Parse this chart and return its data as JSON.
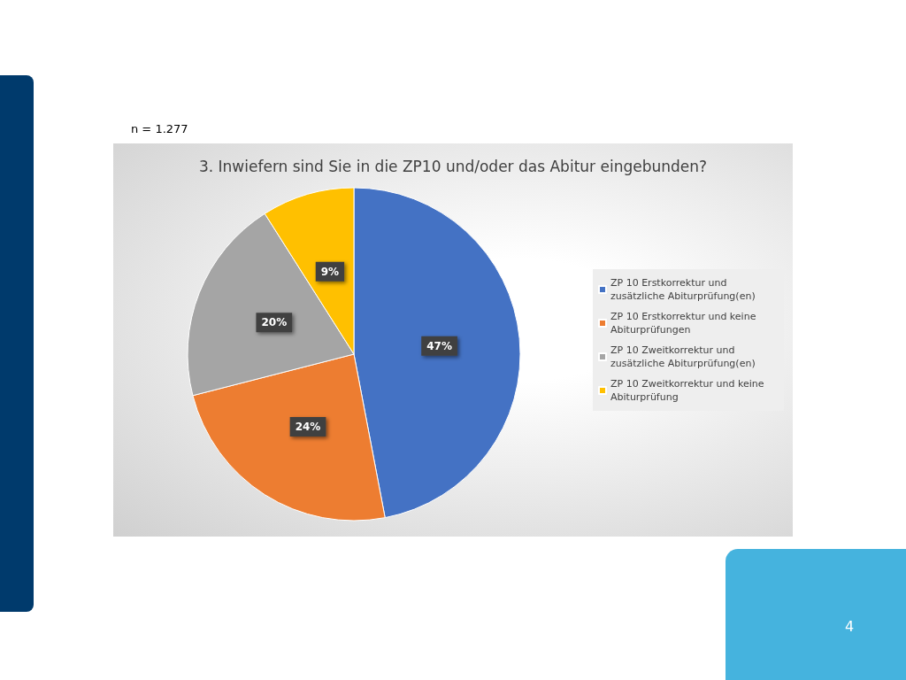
{
  "chart_data": {
    "type": "pie",
    "title": "3. Inwiefern sind Sie in die ZP10 und/oder das Abitur eingebunden?",
    "categories": [
      "ZP 10 Erstkorrektur und zusätzliche Abiturprüfung(en)",
      "ZP 10 Erstkorrektur und keine Abiturprüfungen",
      "ZP 10 Zweitkorrektur und zusätzliche Abiturprüfung(en)",
      "ZP 10 Zweitkorrektur und keine Abiturprüfung"
    ],
    "values": [
      47,
      24,
      20,
      9
    ],
    "value_labels": [
      "47%",
      "24%",
      "20%",
      "9%"
    ],
    "colors": [
      "#4472c4",
      "#ed7d31",
      "#a5a5a5",
      "#ffc000"
    ],
    "legend": "right",
    "annotations": [
      "n = 1.277",
      "4"
    ]
  }
}
